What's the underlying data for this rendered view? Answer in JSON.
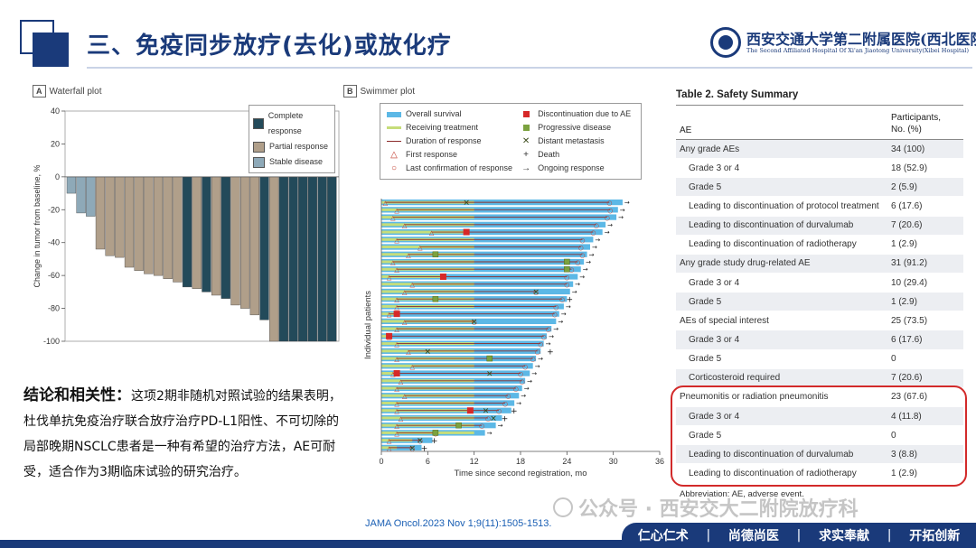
{
  "header": {
    "title": "三、免疫同步放疗(去化)或放化疗",
    "hospital_name": "西安交通大学第二附属医院(西北医院)",
    "hospital_en": "The Second Affiliated Hospital Of Xi'an Jiaotong University(Xibei Hospital)"
  },
  "waterfall": {
    "tag": "A",
    "title": "Waterfall plot",
    "legend": [
      {
        "label": "Complete response",
        "color": "#234a5a"
      },
      {
        "label": "Partial response",
        "color": "#b09f8a"
      },
      {
        "label": "Stable disease",
        "color": "#8ea9b8"
      }
    ]
  },
  "swimmer": {
    "tag": "B",
    "title": "Swimmer plot",
    "legend": [
      {
        "label": "Overall survival",
        "icon": "overall-survival-swatch"
      },
      {
        "label": "Discontinuation due to AE",
        "icon": "red-square-icon"
      },
      {
        "label": "Receiving treatment",
        "icon": "receiving-treatment-swatch"
      },
      {
        "label": "Progressive disease",
        "icon": "green-square-icon"
      },
      {
        "label": "Duration of response",
        "icon": "duration-line-icon"
      },
      {
        "label": "Distant metastasis",
        "icon": "x-mark-icon"
      },
      {
        "label": "First response",
        "icon": "triangle-icon"
      },
      {
        "label": "Death",
        "icon": "plus-icon"
      },
      {
        "label": "Last confirmation of response",
        "icon": "circle-icon"
      },
      {
        "label": "Ongoing response",
        "icon": "arrow-icon"
      }
    ],
    "marker_glyphs": {
      "x": "✕",
      "plus": "+",
      "arrow": "→",
      "triangle": "△",
      "circle": "○"
    },
    "colors": {
      "os": "#5cb8e6",
      "treat": "#c6dd7a",
      "resp": "#8b2b2b",
      "ae": "#d62828",
      "pd": "#7ba23f",
      "dm": "#3a4a1a",
      "arrow": "#222222"
    }
  },
  "chart_data": [
    {
      "type": "bar",
      "title": "Waterfall plot",
      "ylabel": "Change in tumor from baseline, %",
      "xlabel": "",
      "ylim": [
        -100,
        40
      ],
      "yticks": [
        40,
        20,
        0,
        -20,
        -40,
        -60,
        -80,
        -100
      ],
      "grid": false,
      "legend_position": "top-right",
      "bars": [
        {
          "value": -10,
          "cat": "SD"
        },
        {
          "value": -22,
          "cat": "SD"
        },
        {
          "value": -24,
          "cat": "SD"
        },
        {
          "value": -44,
          "cat": "PR"
        },
        {
          "value": -48,
          "cat": "PR"
        },
        {
          "value": -49,
          "cat": "PR"
        },
        {
          "value": -55,
          "cat": "PR"
        },
        {
          "value": -57,
          "cat": "PR"
        },
        {
          "value": -59,
          "cat": "PR"
        },
        {
          "value": -60,
          "cat": "PR"
        },
        {
          "value": -62,
          "cat": "PR"
        },
        {
          "value": -64,
          "cat": "PR"
        },
        {
          "value": -67,
          "cat": "CR"
        },
        {
          "value": -68,
          "cat": "PR"
        },
        {
          "value": -70,
          "cat": "CR"
        },
        {
          "value": -72,
          "cat": "PR"
        },
        {
          "value": -74,
          "cat": "CR"
        },
        {
          "value": -78,
          "cat": "PR"
        },
        {
          "value": -80,
          "cat": "PR"
        },
        {
          "value": -84,
          "cat": "PR"
        },
        {
          "value": -87,
          "cat": "CR"
        },
        {
          "value": -100,
          "cat": "PR"
        },
        {
          "value": -100,
          "cat": "CR"
        },
        {
          "value": -100,
          "cat": "CR"
        },
        {
          "value": -100,
          "cat": "CR"
        },
        {
          "value": -100,
          "cat": "CR"
        },
        {
          "value": -100,
          "cat": "CR"
        },
        {
          "value": -100,
          "cat": "CR"
        }
      ],
      "category_colors": {
        "CR": "#234a5a",
        "PR": "#b09f8a",
        "SD": "#8ea9b8"
      }
    },
    {
      "type": "bar",
      "orientation": "horizontal",
      "title": "Swimmer plot",
      "xlabel": "Time since second registration, mo",
      "ylabel": "Individual patients",
      "xlim": [
        0,
        36
      ],
      "xticks": [
        0,
        6,
        12,
        18,
        24,
        30,
        36
      ],
      "grid": false,
      "patients": [
        {
          "os": 31.2,
          "treat": 12.0,
          "resp": [
            0.5,
            29.5
          ],
          "fr": 0.5,
          "lc": 29.5,
          "dm": 11.0,
          "ongoing": true
        },
        {
          "os": 30.6,
          "treat": 12.0,
          "resp": [
            2.0,
            29.6
          ],
          "fr": 2.0,
          "lc": 29.6,
          "ongoing": true
        },
        {
          "os": 30.4,
          "treat": 12.0,
          "resp": [
            1.5,
            29.2
          ],
          "fr": 1.5,
          "lc": 29.2,
          "ongoing": true
        },
        {
          "os": 29.0,
          "treat": 12.0,
          "resp": [
            3.0,
            27.8
          ],
          "fr": 3.0,
          "lc": 27.8,
          "ongoing": true
        },
        {
          "os": 28.6,
          "treat": 11.0,
          "resp": [
            6.5,
            27.4
          ],
          "fr": 6.5,
          "lc": 27.4,
          "ae": 11.0,
          "ongoing": true
        },
        {
          "os": 27.4,
          "treat": 12.0,
          "resp": [
            2.0,
            26.0
          ],
          "fr": 2.0,
          "lc": 26.0,
          "ongoing": true
        },
        {
          "os": 27.0,
          "treat": 12.0,
          "resp": [
            5.0,
            25.8
          ],
          "fr": 5.0,
          "lc": 25.8,
          "ongoing": true
        },
        {
          "os": 26.6,
          "treat": 12.0,
          "resp": [
            3.5,
            26.0
          ],
          "fr": 3.5,
          "lc": 26.0,
          "pd": 7.0,
          "ongoing": true
        },
        {
          "os": 26.2,
          "treat": 12.0,
          "resp": [
            1.5,
            25.4
          ],
          "fr": 1.5,
          "lc": 25.4,
          "pd": 24.0,
          "ongoing": true
        },
        {
          "os": 25.8,
          "treat": 12.0,
          "resp": [
            2.0,
            24.6
          ],
          "fr": 2.0,
          "lc": 24.6,
          "pd": 24.0,
          "ongoing": true
        },
        {
          "os": 25.4,
          "treat": 8.0,
          "resp": [
            1.0,
            24.0
          ],
          "fr": 1.0,
          "lc": 24.0,
          "ae": 8.0,
          "ongoing": true
        },
        {
          "os": 24.8,
          "treat": 12.0,
          "resp": [
            4.0,
            24.0
          ],
          "fr": 4.0,
          "lc": 24.0,
          "ongoing": true
        },
        {
          "os": 24.4,
          "treat": 12.0,
          "resp": [
            3.0,
            20.0
          ],
          "fr": 3.0,
          "lc": 20.0,
          "dm": 20.0,
          "ongoing": true
        },
        {
          "os": 24.0,
          "treat": 12.0,
          "resp": [
            2.0,
            23.4
          ],
          "fr": 2.0,
          "lc": 23.4,
          "pd": 7.0,
          "death": 24.0
        },
        {
          "os": 23.6,
          "treat": 12.0,
          "resp": [
            2.0,
            22.6
          ],
          "fr": 2.0,
          "lc": 22.6,
          "ongoing": true
        },
        {
          "os": 23.0,
          "treat": 2.0,
          "resp": [
            1.0,
            22.4
          ],
          "fr": 1.0,
          "lc": 22.4,
          "ae": 2.0,
          "ongoing": true
        },
        {
          "os": 22.6,
          "treat": 12.0,
          "resp": [
            3.0,
            12.0
          ],
          "fr": 3.0,
          "lc": 12.0,
          "dm": 12.0,
          "ongoing": true
        },
        {
          "os": 22.0,
          "treat": 12.0,
          "resp": [
            2.0,
            21.6
          ],
          "fr": 2.0,
          "lc": 21.6,
          "ongoing": true
        },
        {
          "os": 21.4,
          "treat": 1.0,
          "resp": [
            1.0,
            21.0
          ],
          "fr": 1.0,
          "lc": 21.0,
          "ae": 1.0,
          "ongoing": true
        },
        {
          "os": 21.0,
          "treat": 12.0,
          "resp": [
            2.0,
            20.6
          ],
          "fr": 2.0,
          "lc": 20.6,
          "ongoing": true
        },
        {
          "os": 20.6,
          "treat": 12.0,
          "resp": [
            3.5,
            20.2
          ],
          "fr": 3.5,
          "lc": 20.2,
          "dm": 6.0,
          "death": 21.5
        },
        {
          "os": 20.0,
          "treat": 12.0,
          "resp": [
            2.0,
            19.6
          ],
          "fr": 2.0,
          "lc": 19.6,
          "pd": 14.0,
          "ongoing": true
        },
        {
          "os": 19.6,
          "treat": 12.0,
          "resp": [
            4.0,
            18.6
          ],
          "fr": 4.0,
          "lc": 18.6,
          "ongoing": true
        },
        {
          "os": 19.2,
          "treat": 2.0,
          "resp": [
            1.5,
            18.0
          ],
          "fr": 1.5,
          "lc": 18.0,
          "ae": 2.0,
          "dm": 14.0,
          "ongoing": true
        },
        {
          "os": 18.6,
          "treat": 12.0,
          "resp": [
            2.5,
            18.2
          ],
          "fr": 2.5,
          "lc": 18.2,
          "ongoing": true
        },
        {
          "os": 18.2,
          "treat": 12.0,
          "resp": [
            2.0,
            17.4
          ],
          "fr": 2.0,
          "lc": 17.4,
          "ongoing": true
        },
        {
          "os": 17.8,
          "treat": 12.0,
          "resp": [
            3.0,
            16.4
          ],
          "fr": 3.0,
          "lc": 16.4,
          "ongoing": true
        },
        {
          "os": 17.2,
          "treat": 12.0,
          "resp": [
            2.0,
            16.0
          ],
          "fr": 2.0,
          "lc": 16.0,
          "ongoing": true
        },
        {
          "os": 16.8,
          "treat": 11.5,
          "resp": [
            2.0,
            15.2
          ],
          "fr": 2.0,
          "lc": 15.2,
          "ae": 11.5,
          "dm": 13.5,
          "death": 16.8
        },
        {
          "os": 15.6,
          "treat": 12.0,
          "resp": [
            2.5,
            13.8
          ],
          "fr": 2.5,
          "lc": 13.8,
          "dm": 14.5,
          "death": 15.6
        },
        {
          "os": 14.8,
          "treat": 12.0,
          "resp": [
            2.0,
            13.0
          ],
          "fr": 2.0,
          "lc": 13.0,
          "pd": 10.0,
          "ongoing": true
        },
        {
          "os": 13.4,
          "treat": 12.0,
          "resp": [
            2.0,
            7.0
          ],
          "fr": 2.0,
          "lc": 7.0,
          "pd": 7.0,
          "ongoing": true
        },
        {
          "os": 6.6,
          "treat": 4.0,
          "resp": [
            1.0,
            5.0
          ],
          "fr": 1.0,
          "lc": 5.0,
          "dm": 5.0,
          "death": 6.5
        },
        {
          "os": 5.2,
          "treat": 2.0,
          "resp": [
            1.0,
            4.0
          ],
          "fr": 1.0,
          "lc": 4.0,
          "dm": 4.0,
          "death": 5.2
        }
      ]
    }
  ],
  "conclusion": {
    "heading": "结论和相关性：",
    "body": "这项2期非随机对照试验的结果表明，杜伐单抗免疫治疗联合放疗治疗PD-L1阳性、不可切除的局部晚期NSCLC患者是一种有希望的治疗方法，AE可耐受，适合作为3期临床试验的研究治疗。"
  },
  "citation": "JAMA Oncol.2023 Nov 1;9(11):1505-1513.",
  "table": {
    "title": "Table 2. Safety Summary",
    "col1": "AE",
    "col2_line1": "Participants,",
    "col2_line2": "No. (%)",
    "rows": [
      {
        "label": "Any grade AEs",
        "value": "34 (100)",
        "indent": false
      },
      {
        "label": "Grade 3 or 4",
        "value": "18 (52.9)",
        "indent": true
      },
      {
        "label": "Grade 5",
        "value": "2 (5.9)",
        "indent": true
      },
      {
        "label": "Leading to discontinuation of protocol treatment",
        "value": "6 (17.6)",
        "indent": true
      },
      {
        "label": "Leading to discontinuation of durvalumab",
        "value": "7 (20.6)",
        "indent": true
      },
      {
        "label": "Leading to discontinuation of radiotherapy",
        "value": "1 (2.9)",
        "indent": true
      },
      {
        "label": "Any grade study drug-related AE",
        "value": "31 (91.2)",
        "indent": false
      },
      {
        "label": "Grade 3 or 4",
        "value": "10 (29.4)",
        "indent": true
      },
      {
        "label": "Grade 5",
        "value": "1 (2.9)",
        "indent": true
      },
      {
        "label": "AEs of special interest",
        "value": "25 (73.5)",
        "indent": false
      },
      {
        "label": "Grade 3 or 4",
        "value": "6 (17.6)",
        "indent": true
      },
      {
        "label": "Grade 5",
        "value": "0",
        "indent": true
      },
      {
        "label": "Corticosteroid required",
        "value": "7 (20.6)",
        "indent": true
      },
      {
        "label": "Pneumonitis or radiation pneumonitis",
        "value": "23 (67.6)",
        "indent": false
      },
      {
        "label": "Grade 3 or 4",
        "value": "4 (11.8)",
        "indent": true
      },
      {
        "label": "Grade 5",
        "value": "0",
        "indent": true
      },
      {
        "label": "Leading to discontinuation of durvalumab",
        "value": "3 (8.8)",
        "indent": true
      },
      {
        "label": "Leading to discontinuation of radiotherapy",
        "value": "1 (2.9)",
        "indent": true
      }
    ],
    "footnote": "Abbreviation: AE, adverse event."
  },
  "watermark": "公众号 · 西安交大二附院放疗科",
  "slogan": [
    "仁心仁术",
    "尚德尚医",
    "求实奉献",
    "开拓创新"
  ]
}
